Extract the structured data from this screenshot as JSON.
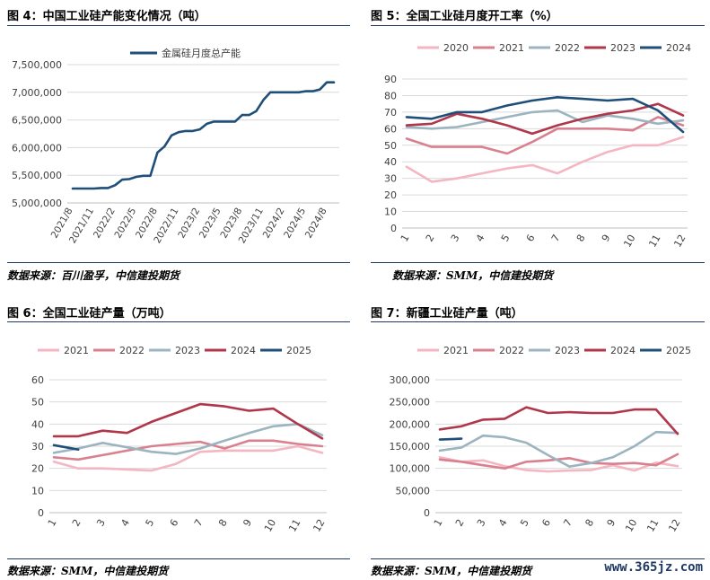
{
  "panels": [
    {
      "title": "图 4：中国工业硅产能变化情况（吨）",
      "source": "数据来源：百川盈孚，中信建投期货"
    },
    {
      "title": "图 5：全国工业硅月度开工率（%）",
      "source": "数据来源：SMM，中信建投期货"
    },
    {
      "title": "图 6：全国工业硅产量（万吨）",
      "source": "数据来源：SMM，中信建投期货"
    },
    {
      "title": "图 7：新疆工业硅产量（吨）",
      "source": "数据来源：SMM，中信建投期货"
    }
  ],
  "watermark": "www.365jz.com",
  "chart_data": [
    {
      "type": "line",
      "title": "",
      "ylim": [
        5000000,
        7500000
      ],
      "yticks": [
        "5,000,000",
        "5,500,000",
        "6,000,000",
        "6,500,000",
        "7,000,000",
        "7,500,000"
      ],
      "xticks": [
        "2021/8",
        "2021/11",
        "2022/2",
        "2022/5",
        "2022/8",
        "2022/11",
        "2023/2",
        "2023/5",
        "2023/8",
        "2023/11",
        "2024/2",
        "2024/5",
        "2024/8"
      ],
      "legend_position": "top",
      "series": [
        {
          "name": "金属硅月度总产能",
          "color": "#1f4e79",
          "values": [
            5260000,
            5260000,
            5260000,
            5260000,
            5270000,
            5270000,
            5320000,
            5420000,
            5430000,
            5470000,
            5490000,
            5490000,
            5910000,
            6020000,
            6220000,
            6280000,
            6300000,
            6300000,
            6330000,
            6430000,
            6470000,
            6470000,
            6470000,
            6470000,
            6590000,
            6590000,
            6660000,
            6860000,
            7000000,
            7000000,
            7000000,
            7000000,
            7000000,
            7020000,
            7020000,
            7050000,
            7180000,
            7180000
          ]
        }
      ]
    },
    {
      "type": "line",
      "title": "",
      "ylim": [
        0,
        90
      ],
      "yticks": [
        "0",
        "10",
        "20",
        "30",
        "40",
        "50",
        "60",
        "70",
        "80",
        "90"
      ],
      "xticks": [
        "1",
        "2",
        "3",
        "4",
        "5",
        "6",
        "7",
        "8",
        "9",
        "10",
        "11",
        "12"
      ],
      "legend_position": "top",
      "series": [
        {
          "name": "2020",
          "color": "#f4b6c2",
          "values": [
            37,
            28,
            30,
            33,
            36,
            38,
            33,
            40,
            46,
            50,
            50,
            55
          ]
        },
        {
          "name": "2021",
          "color": "#d9808f",
          "values": [
            54,
            49,
            49,
            49,
            45,
            52,
            60,
            60,
            60,
            59,
            67,
            62
          ]
        },
        {
          "name": "2022",
          "color": "#9bb4c0",
          "values": [
            61,
            60,
            61,
            64,
            67,
            70,
            71,
            64,
            68,
            66,
            63,
            65
          ]
        },
        {
          "name": "2023",
          "color": "#b0364a",
          "values": [
            62,
            63,
            69,
            66,
            62,
            57,
            62,
            66,
            69,
            71,
            75,
            68
          ]
        },
        {
          "name": "2024",
          "color": "#1f4e79",
          "values": [
            67,
            66,
            70,
            70,
            74,
            77,
            79,
            78,
            77,
            78,
            71,
            58
          ]
        }
      ]
    },
    {
      "type": "line",
      "title": "",
      "ylim": [
        0,
        60
      ],
      "yticks": [
        "0",
        "10",
        "20",
        "30",
        "40",
        "50",
        "60"
      ],
      "xticks": [
        "1",
        "2",
        "3",
        "4",
        "5",
        "6",
        "7",
        "8",
        "9",
        "10",
        "11",
        "12"
      ],
      "legend_position": "top",
      "series": [
        {
          "name": "2021",
          "color": "#f4b6c2",
          "values": [
            23,
            20,
            20,
            19.5,
            19,
            22,
            27.5,
            28,
            28,
            28,
            30,
            27
          ]
        },
        {
          "name": "2022",
          "color": "#d9808f",
          "values": [
            25,
            24,
            26,
            28,
            30,
            31,
            32,
            29,
            32.5,
            32.5,
            31,
            30
          ]
        },
        {
          "name": "2023",
          "color": "#9bb4c0",
          "values": [
            27,
            29,
            31.5,
            29.5,
            27.5,
            26.5,
            29,
            32.5,
            36,
            39,
            40,
            35
          ]
        },
        {
          "name": "2024",
          "color": "#b0364a",
          "values": [
            34.5,
            34.5,
            37,
            36,
            41,
            45,
            49,
            48,
            46,
            47,
            40,
            33.5
          ]
        },
        {
          "name": "2025",
          "color": "#1f4e79",
          "values": [
            30.5,
            28.5
          ]
        }
      ]
    },
    {
      "type": "line",
      "title": "",
      "ylim": [
        0,
        300000
      ],
      "yticks": [
        "0",
        "50,000",
        "100,000",
        "150,000",
        "200,000",
        "250,000",
        "300,000"
      ],
      "xticks": [
        "1",
        "2",
        "3",
        "4",
        "5",
        "6",
        "7",
        "8",
        "9",
        "10",
        "11",
        "12"
      ],
      "legend_position": "top",
      "series": [
        {
          "name": "2021",
          "color": "#f4b6c2",
          "values": [
            125000,
            115000,
            118000,
            105000,
            96000,
            93000,
            95000,
            96000,
            107000,
            95000,
            113000,
            105000
          ]
        },
        {
          "name": "2022",
          "color": "#d9808f",
          "values": [
            120000,
            115000,
            107000,
            100000,
            115000,
            118000,
            123000,
            112000,
            110000,
            112000,
            107000,
            132000
          ]
        },
        {
          "name": "2023",
          "color": "#9bb4c0",
          "values": [
            140000,
            147000,
            174000,
            170000,
            158000,
            130000,
            104000,
            112000,
            125000,
            150000,
            182000,
            180000
          ]
        },
        {
          "name": "2024",
          "color": "#b0364a",
          "values": [
            188000,
            195000,
            210000,
            212000,
            238000,
            225000,
            227000,
            225000,
            225000,
            233000,
            233000,
            178000
          ]
        },
        {
          "name": "2025",
          "color": "#1f4e79",
          "values": [
            165000,
            167000
          ]
        }
      ]
    }
  ]
}
